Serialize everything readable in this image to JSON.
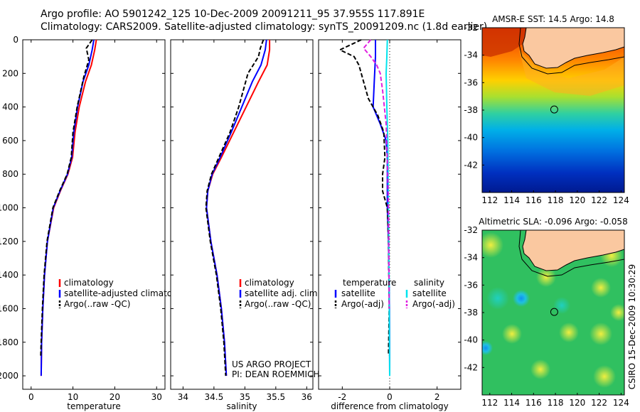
{
  "header": {
    "line1": "Argo profile: AO 5901242_125 10-Dec-2009 20091211_95 37.955S 117.891E",
    "line2": "Climatology: CARS2009. Satellite-adjusted climatology: synTS_20091209.nc (1.8d earlier)"
  },
  "colors": {
    "climatology": "#ff0000",
    "satellite": "#0000ff",
    "argo": "#000000",
    "sal_satellite": "#00e5ee",
    "sal_argo": "#e020e0"
  },
  "chart_data": [
    {
      "type": "line",
      "panel": "temperature",
      "xlabel": "temperature",
      "xlim": [
        -2,
        32
      ],
      "ylim": [
        0,
        2080
      ],
      "y_reversed": true,
      "xticks": [
        0,
        10,
        20,
        30
      ],
      "yticks": [
        0,
        200,
        400,
        600,
        800,
        1000,
        1200,
        1400,
        1600,
        1800,
        2000
      ],
      "legend": {
        "position": "lower-center",
        "entries": [
          "climatology",
          "satellite-adjusted climatology",
          "Argo(..raw -QC)"
        ]
      },
      "series": [
        {
          "name": "climatology",
          "color": "#ff0000",
          "dash": "",
          "x": [
            15.6,
            15.2,
            14.4,
            13.0,
            11.5,
            10.5,
            9.9,
            8.8,
            7.0,
            5.4,
            3.9,
            3.2,
            2.8,
            2.5,
            2.4
          ],
          "y": [
            0,
            60,
            150,
            250,
            400,
            550,
            700,
            800,
            900,
            1000,
            1200,
            1400,
            1600,
            1800,
            2000
          ]
        },
        {
          "name": "satellite-adjusted climatology",
          "color": "#0000ff",
          "dash": "",
          "x": [
            15.0,
            14.6,
            13.8,
            12.4,
            11.1,
            10.2,
            9.7,
            8.7,
            6.9,
            5.3,
            3.9,
            3.2,
            2.8,
            2.5,
            2.4
          ],
          "y": [
            0,
            60,
            150,
            250,
            400,
            550,
            700,
            800,
            900,
            1000,
            1200,
            1400,
            1600,
            1800,
            2000
          ]
        },
        {
          "name": "Argo(..raw -QC)",
          "color": "#000000",
          "dash": "6,3",
          "x": [
            14.6,
            13.2,
            13.8,
            12.6,
            11.0,
            10.0,
            9.6,
            8.6,
            6.8,
            5.2,
            3.8,
            3.1,
            2.7,
            2.4,
            2.3
          ],
          "y": [
            0,
            50,
            120,
            220,
            400,
            550,
            700,
            800,
            900,
            1000,
            1200,
            1400,
            1600,
            1800,
            1880
          ]
        }
      ]
    },
    {
      "type": "line",
      "panel": "salinity",
      "xlabel": "salinity",
      "xlim": [
        33.8,
        36.1
      ],
      "ylim": [
        0,
        2080
      ],
      "y_reversed": true,
      "xticks": [
        34,
        34.5,
        35,
        35.5,
        36
      ],
      "xtick_labels": [
        "34",
        "34.5",
        "35",
        "35.5",
        "36"
      ],
      "legend": {
        "position": "lower-center",
        "entries": [
          "climatology",
          "satellite adj. clim.",
          "Argo(..raw -QC)"
        ]
      },
      "annotation": [
        "US ARGO PROJECT",
        "PI: DEAN ROEMMICH"
      ],
      "series": [
        {
          "name": "climatology",
          "color": "#ff0000",
          "dash": "",
          "x": [
            35.4,
            35.4,
            35.36,
            35.22,
            35.02,
            34.82,
            34.62,
            34.48,
            34.4,
            34.38,
            34.45,
            34.55,
            34.62,
            34.67,
            34.7
          ],
          "y": [
            0,
            60,
            150,
            250,
            400,
            550,
            700,
            800,
            900,
            1000,
            1200,
            1400,
            1600,
            1800,
            2000
          ]
        },
        {
          "name": "satellite adj. clim.",
          "color": "#0000ff",
          "dash": "",
          "x": [
            35.35,
            35.33,
            35.26,
            35.12,
            34.95,
            34.78,
            34.6,
            34.47,
            34.4,
            34.38,
            34.45,
            34.55,
            34.62,
            34.67,
            34.7
          ],
          "y": [
            0,
            60,
            150,
            250,
            400,
            550,
            700,
            800,
            900,
            1000,
            1200,
            1400,
            1600,
            1800,
            2000
          ]
        },
        {
          "name": "Argo(..raw -QC)",
          "color": "#000000",
          "dash": "6,3",
          "x": [
            35.3,
            35.25,
            35.22,
            35.05,
            34.9,
            34.76,
            34.58,
            34.46,
            34.39,
            34.37,
            34.44,
            34.54,
            34.61,
            34.66,
            34.69
          ],
          "y": [
            0,
            50,
            100,
            200,
            400,
            550,
            700,
            800,
            900,
            1000,
            1200,
            1400,
            1600,
            1800,
            2000
          ]
        }
      ]
    },
    {
      "type": "line",
      "panel": "difference",
      "xlabel": "difference from climatology",
      "xlim": [
        -3.0,
        3.0
      ],
      "ylim": [
        0,
        2080
      ],
      "y_reversed": true,
      "xticks": [
        -2,
        0,
        2
      ],
      "legend": {
        "position": "lower-center",
        "groups": [
          {
            "title": "temperature",
            "entries": [
              "satellite",
              "Argo(-adj)"
            ]
          },
          {
            "title": "salinity",
            "entries": [
              "satellite",
              "Argo(-adj)"
            ]
          }
        ]
      },
      "series": [
        {
          "name": "temperature satellite",
          "color": "#0000ff",
          "dash": "",
          "x": [
            -0.6,
            -0.6,
            -0.65,
            -0.7,
            -0.4,
            -0.15,
            -0.1,
            -0.1,
            -0.1,
            -0.1,
            -0.05,
            -0.03,
            -0.01,
            0.0
          ],
          "y": [
            0,
            100,
            250,
            400,
            500,
            600,
            700,
            800,
            900,
            1000,
            1200,
            1400,
            1600,
            2000
          ]
        },
        {
          "name": "temperature Argo(-adj)",
          "color": "#000000",
          "dash": "6,3",
          "x": [
            -1.2,
            -2.1,
            -1.5,
            -1.3,
            -1.1,
            -0.9,
            -0.5,
            -0.25,
            -0.2,
            -0.3,
            -0.3,
            -0.1,
            -0.05,
            -0.02,
            -0.05
          ],
          "y": [
            0,
            60,
            100,
            150,
            250,
            350,
            450,
            550,
            700,
            800,
            900,
            1000,
            1200,
            1600,
            1880
          ]
        },
        {
          "name": "salinity satellite",
          "color": "#00e5ee",
          "dash": "",
          "x": [
            -0.1,
            -0.12,
            -0.15,
            -0.12,
            -0.08,
            -0.05,
            -0.02,
            0.0
          ],
          "y": [
            0,
            100,
            200,
            400,
            600,
            1000,
            1500,
            2000
          ]
        },
        {
          "name": "salinity Argo(-adj)",
          "color": "#e020e0",
          "dash": "6,3",
          "x": [
            -0.8,
            -1.1,
            -0.8,
            -0.55,
            -0.4,
            -0.3,
            -0.15,
            -0.1,
            -0.05,
            -0.03,
            -0.02
          ],
          "y": [
            0,
            50,
            100,
            150,
            200,
            300,
            500,
            700,
            1000,
            1400,
            1600
          ]
        }
      ]
    },
    {
      "type": "heatmap",
      "panel": "sst-map",
      "title": "AMSR-E SST: 14.5 Argo: 14.8",
      "xlim": [
        111.3,
        124.3
      ],
      "ylim": [
        -44,
        -32
      ],
      "xticks": [
        112,
        114,
        116,
        118,
        120,
        122,
        124
      ],
      "yticks": [
        -32,
        -34,
        -36,
        -38,
        -40,
        -42
      ],
      "argo_position": {
        "lon": 117.891,
        "lat": -37.955
      }
    },
    {
      "type": "heatmap",
      "panel": "sla-map",
      "title": "Altimetric SLA: -0.096 Argo: -0.058",
      "xlim": [
        111.3,
        124.3
      ],
      "ylim": [
        -44,
        -32
      ],
      "xticks": [
        112,
        114,
        116,
        118,
        120,
        122,
        124
      ],
      "yticks": [
        -32,
        -34,
        -36,
        -38,
        -40,
        -42
      ],
      "argo_position": {
        "lon": 117.891,
        "lat": -37.955
      }
    }
  ],
  "side_label": "CSIRO 15-Dec-2009 10:30:29"
}
